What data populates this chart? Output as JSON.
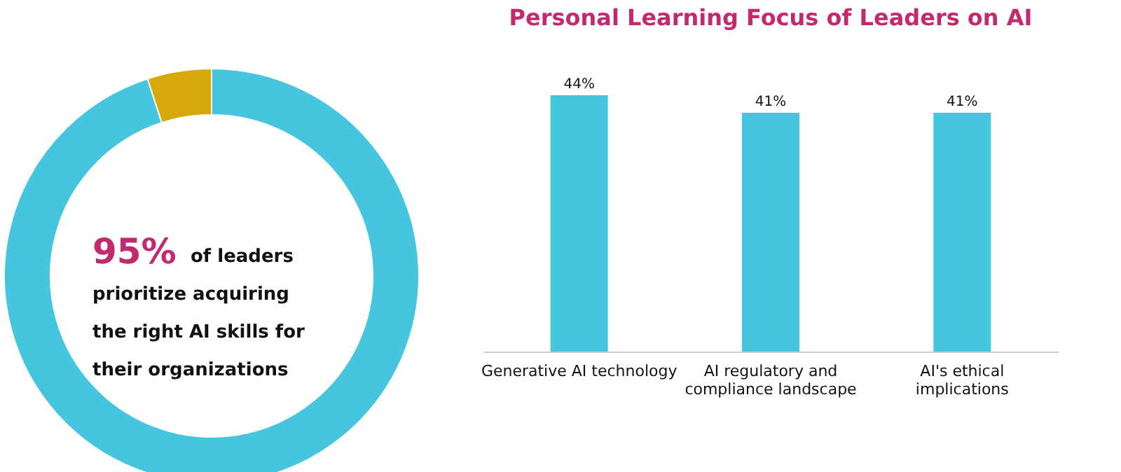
{
  "chart_data": [
    {
      "type": "donut",
      "categories": [
        null,
        null
      ],
      "values": [
        95,
        5
      ],
      "colors": [
        "#45c6de",
        "#d6a80a"
      ],
      "annotations": [
        "95%",
        "of leaders",
        "prioritize acquiring",
        "the right AI skills for",
        "their organizations"
      ]
    },
    {
      "type": "bar",
      "title": "Personal Learning Focus of Leaders on AI",
      "categories": [
        "Generative AI technology",
        "AI regulatory and compliance landscape",
        "AI's ethical implications"
      ],
      "values": [
        44,
        41,
        41
      ],
      "color": "#45c6de",
      "data_labels": true,
      "value_labels": [
        "44%",
        "41%",
        "41%"
      ],
      "grid": false
    }
  ]
}
